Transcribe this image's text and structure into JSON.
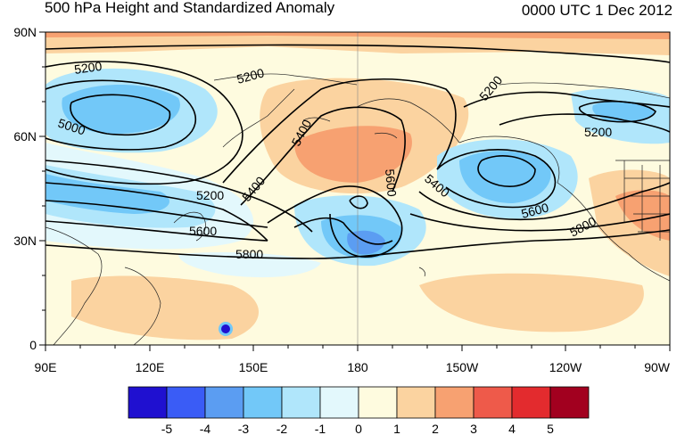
{
  "title": "500 hPa Height and Standardized Anomaly",
  "datetime": "0000 UTC 1 Dec 2012",
  "lat_ticks": [
    "90N",
    "60N",
    "30N",
    "0"
  ],
  "lon_ticks": [
    "90E",
    "120E",
    "150E",
    "180",
    "150W",
    "120W",
    "90W"
  ],
  "colorbar": {
    "colors": [
      "#1f10d0",
      "#3a5cf6",
      "#5b9df2",
      "#72c8f8",
      "#b0e6fb",
      "#e3f8fc",
      "#fefbdf",
      "#fbd3a0",
      "#f7a171",
      "#ee5a4a",
      "#e32b2e",
      "#a2001f"
    ],
    "labels": [
      "-5",
      "-4",
      "-3",
      "-2",
      "-1",
      "0",
      "1",
      "2",
      "3",
      "4",
      "5"
    ]
  },
  "contour_labels": [
    {
      "text": "5200"
    },
    {
      "text": "5200"
    },
    {
      "text": "5000"
    },
    {
      "text": "5200"
    },
    {
      "text": "5400"
    },
    {
      "text": "5600"
    },
    {
      "text": "5800"
    },
    {
      "text": "5400"
    },
    {
      "text": "5600"
    },
    {
      "text": "5200"
    },
    {
      "text": "5200"
    },
    {
      "text": "5400"
    },
    {
      "text": "5600"
    },
    {
      "text": "5800"
    }
  ]
}
